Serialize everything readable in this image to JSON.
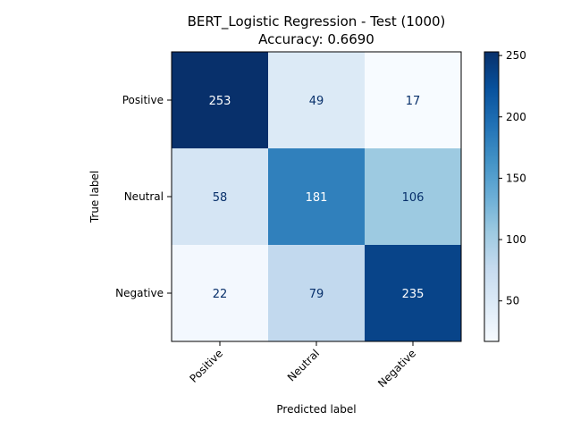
{
  "chart_data": {
    "type": "heatmap",
    "title": "BERT_Logistic Regression - Test (1000)",
    "subtitle": "Accuracy: 0.6690",
    "xlabel": "Predicted label",
    "ylabel": "True label",
    "x_categories": [
      "Positive",
      "Neutral",
      "Negative"
    ],
    "y_categories": [
      "Positive",
      "Neutral",
      "Negative"
    ],
    "values": [
      [
        253,
        49,
        17
      ],
      [
        58,
        181,
        106
      ],
      [
        22,
        79,
        235
      ]
    ],
    "colormap": "Blues",
    "colorbar": {
      "vmin": 17,
      "vmax": 253,
      "ticks": [
        50,
        100,
        150,
        200,
        250
      ]
    }
  }
}
